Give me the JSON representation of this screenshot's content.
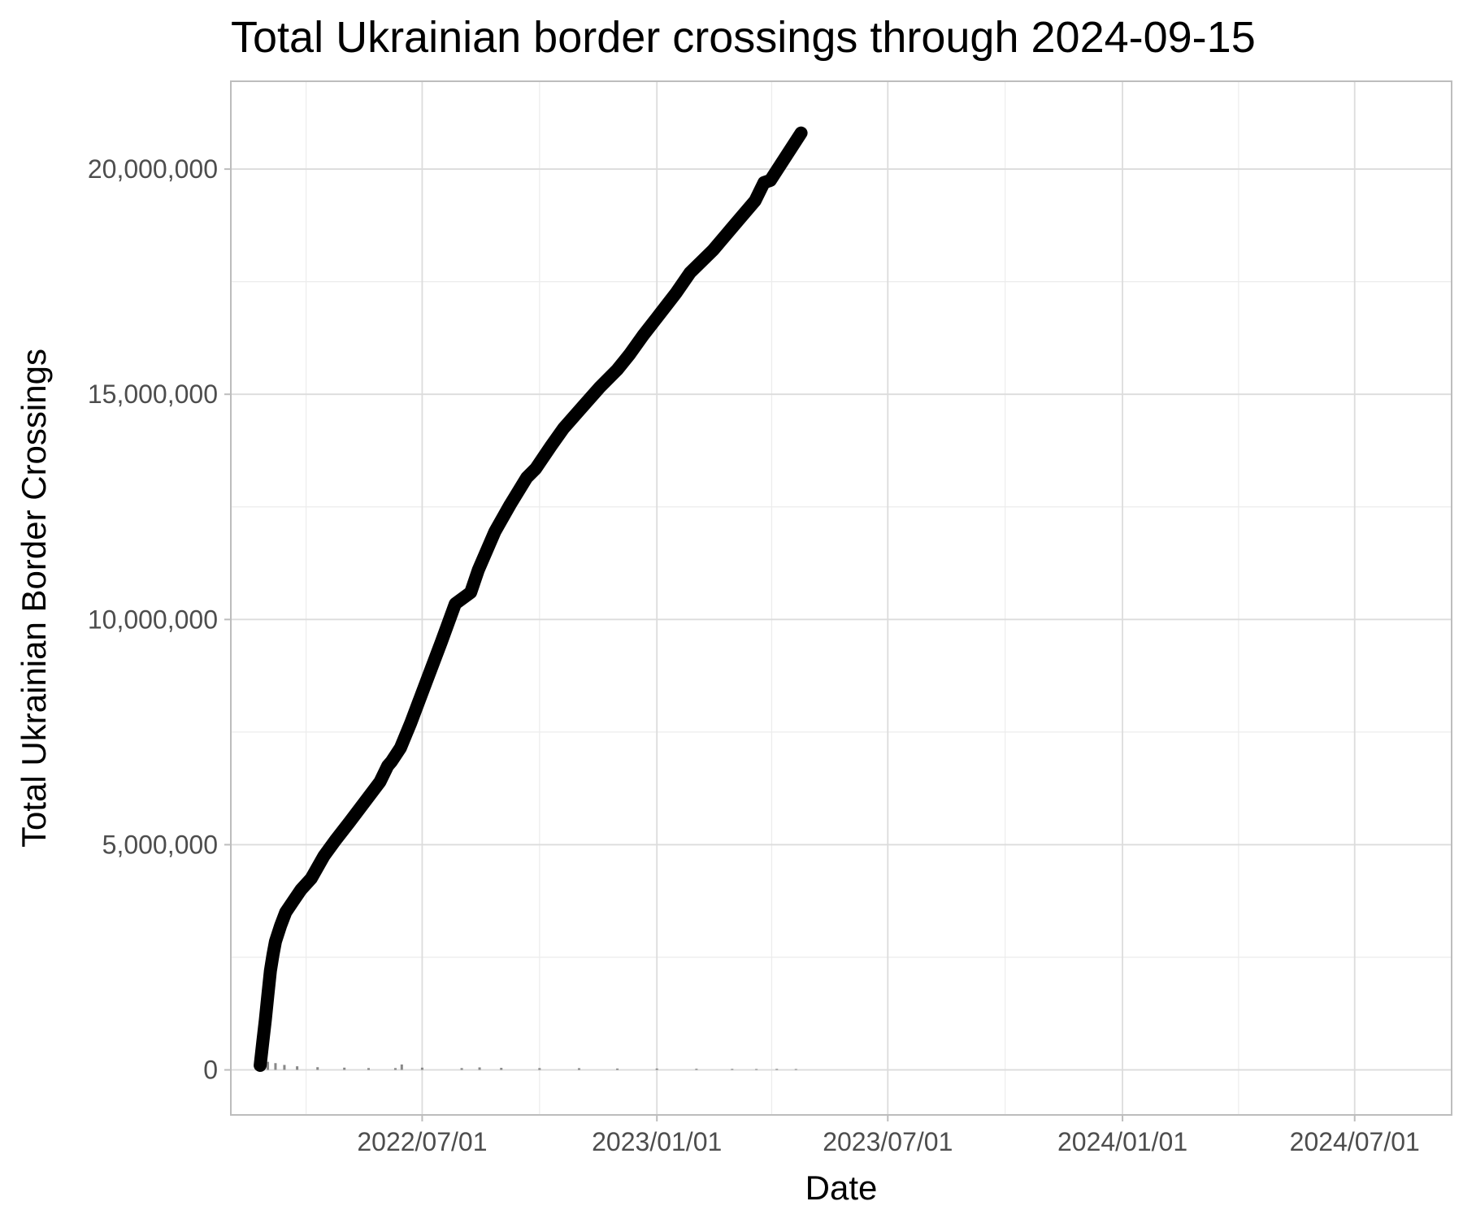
{
  "chart_data": {
    "type": "line",
    "title": "Total Ukrainian border crossings through 2024-09-15",
    "xlabel": "Date",
    "ylabel": "Total Ukrainian Border Crossings",
    "x_range": [
      "2022-02-01",
      "2024-09-15"
    ],
    "ylim": [
      -1000000,
      21950000
    ],
    "grid": true,
    "x_ticks": [
      {
        "date": "2022-07-01",
        "label": "2022/07/01"
      },
      {
        "date": "2023-01-01",
        "label": "2023/01/01"
      },
      {
        "date": "2023-07-01",
        "label": "2023/07/01"
      },
      {
        "date": "2024-01-01",
        "label": "2024/01/01"
      },
      {
        "date": "2024-07-01",
        "label": "2024/07/01"
      }
    ],
    "x_minor_ticks": [
      "2022-04-01",
      "2022-10-01",
      "2023-04-01",
      "2023-10-01",
      "2024-04-01"
    ],
    "y_ticks": [
      {
        "value": 0,
        "label": "0"
      },
      {
        "value": 5000000,
        "label": "5,000,000"
      },
      {
        "value": 10000000,
        "label": "10,000,000"
      },
      {
        "value": 15000000,
        "label": "15,000,000"
      },
      {
        "value": 20000000,
        "label": "20,000,000"
      }
    ],
    "y_minor_ticks": [
      2500000,
      7500000,
      12500000,
      17500000
    ],
    "series": [
      {
        "type": "line",
        "color": "#000000",
        "x": [
          "2022-02-24",
          "2022-02-26",
          "2022-02-28",
          "2022-03-02",
          "2022-03-04",
          "2022-03-06",
          "2022-03-08",
          "2022-03-12",
          "2022-03-16",
          "2022-03-22",
          "2022-03-28",
          "2022-04-05",
          "2022-04-15",
          "2022-04-24",
          "2022-05-05",
          "2022-05-17",
          "2022-05-29",
          "2022-06-04",
          "2022-06-07",
          "2022-06-14",
          "2022-06-22",
          "2022-07-04",
          "2022-07-16",
          "2022-07-27",
          "2022-08-08",
          "2022-08-14",
          "2022-08-27",
          "2022-09-08",
          "2022-09-21",
          "2022-09-28",
          "2022-10-10",
          "2022-10-20",
          "2022-11-03",
          "2022-11-17",
          "2022-12-01",
          "2022-12-11",
          "2022-12-21",
          "2023-01-01",
          "2023-01-16",
          "2023-01-27",
          "2023-02-14",
          "2023-03-04",
          "2023-03-19",
          "2023-03-26",
          "2023-03-31",
          "2023-04-24"
        ],
        "y": [
          100000,
          600000,
          1100000,
          1650000,
          2200000,
          2550000,
          2850000,
          3200000,
          3500000,
          3750000,
          4000000,
          4250000,
          4750000,
          5100000,
          5500000,
          5950000,
          6400000,
          6750000,
          6850000,
          7150000,
          7700000,
          8600000,
          9500000,
          10350000,
          10600000,
          11100000,
          11950000,
          12550000,
          13150000,
          13350000,
          13850000,
          14250000,
          14700000,
          15150000,
          15550000,
          15900000,
          16300000,
          16700000,
          17250000,
          17700000,
          18200000,
          18800000,
          19300000,
          19700000,
          19750000,
          20800000
        ]
      },
      {
        "type": "bar",
        "color": "#888888",
        "x": [
          "2022-02-26",
          "2022-03-02",
          "2022-03-08",
          "2022-03-15",
          "2022-03-25",
          "2022-04-10",
          "2022-05-01",
          "2022-05-20",
          "2022-06-10",
          "2022-06-15",
          "2022-07-01",
          "2022-08-01",
          "2022-08-15",
          "2022-09-01",
          "2022-10-01",
          "2022-11-01",
          "2022-12-01",
          "2023-01-01",
          "2023-02-01",
          "2023-03-01",
          "2023-03-20",
          "2023-04-05",
          "2023-04-20"
        ],
        "y": [
          200000,
          180000,
          150000,
          110000,
          80000,
          60000,
          50000,
          40000,
          40000,
          120000,
          50000,
          40000,
          55000,
          45000,
          40000,
          38000,
          30000,
          30000,
          25000,
          22000,
          20000,
          22000,
          20000
        ]
      }
    ]
  }
}
